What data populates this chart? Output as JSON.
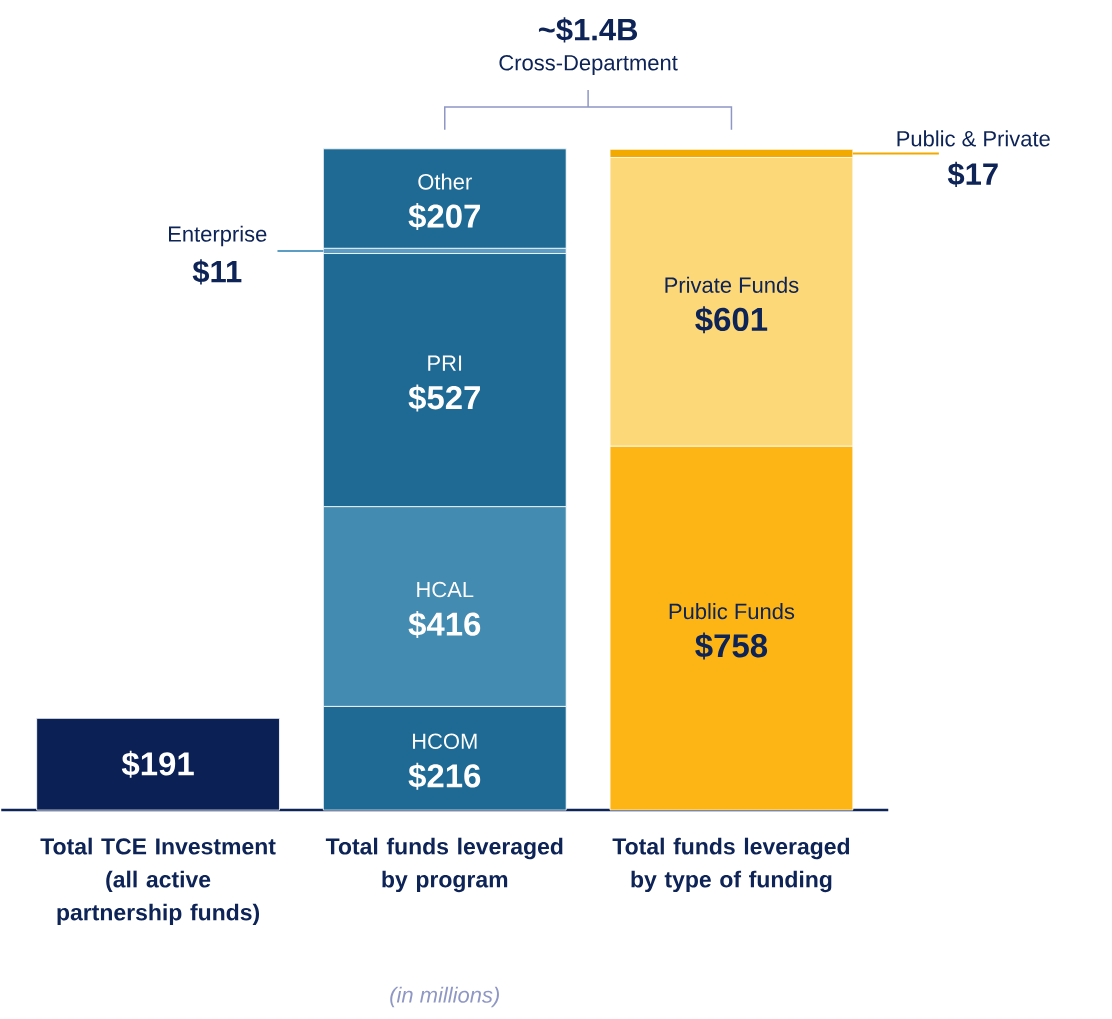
{
  "chart_data": {
    "type": "bar",
    "stacked": true,
    "categories": [
      "Total TCE Investment (all active partnership funds)",
      "Total funds leveraged by program",
      "Total funds leveraged by type of funding"
    ],
    "series": [
      {
        "color": "#0b2155",
        "values": [
          191,
          null,
          null
        ],
        "value_labels": [
          "$191",
          null,
          null
        ]
      },
      {
        "name": "HCOM",
        "color": "#1f6a94",
        "values": [
          null,
          216,
          null
        ],
        "value_labels": [
          null,
          "$216",
          null
        ]
      },
      {
        "name": "HCAL",
        "color": "#438bb0",
        "values": [
          null,
          416,
          null
        ],
        "value_labels": [
          null,
          "$416",
          null
        ]
      },
      {
        "name": "PRI",
        "color": "#1f6a94",
        "values": [
          null,
          527,
          null
        ],
        "value_labels": [
          null,
          "$527",
          null
        ]
      },
      {
        "name": "Enterprise",
        "color": "#5b9dc4",
        "values": [
          null,
          11,
          null
        ],
        "value_labels": [
          null,
          "$11",
          null
        ]
      },
      {
        "name": "Other",
        "color": "#1f6a94",
        "values": [
          null,
          207,
          null
        ],
        "value_labels": [
          null,
          "$207",
          null
        ]
      },
      {
        "name": "Public Funds",
        "color": "#fdb515",
        "values": [
          null,
          null,
          758
        ],
        "value_labels": [
          null,
          null,
          "$758"
        ]
      },
      {
        "name": "Private Funds",
        "color": "#fdd878",
        "values": [
          null,
          null,
          601
        ],
        "value_labels": [
          null,
          null,
          "$601"
        ]
      },
      {
        "name": "Public & Private",
        "color": "#f2a900",
        "values": [
          null,
          null,
          17
        ],
        "value_labels": [
          null,
          null,
          "$17"
        ]
      }
    ],
    "annotations": [
      "~$1.4B",
      "Cross-Department",
      "(in millions)"
    ]
  }
}
